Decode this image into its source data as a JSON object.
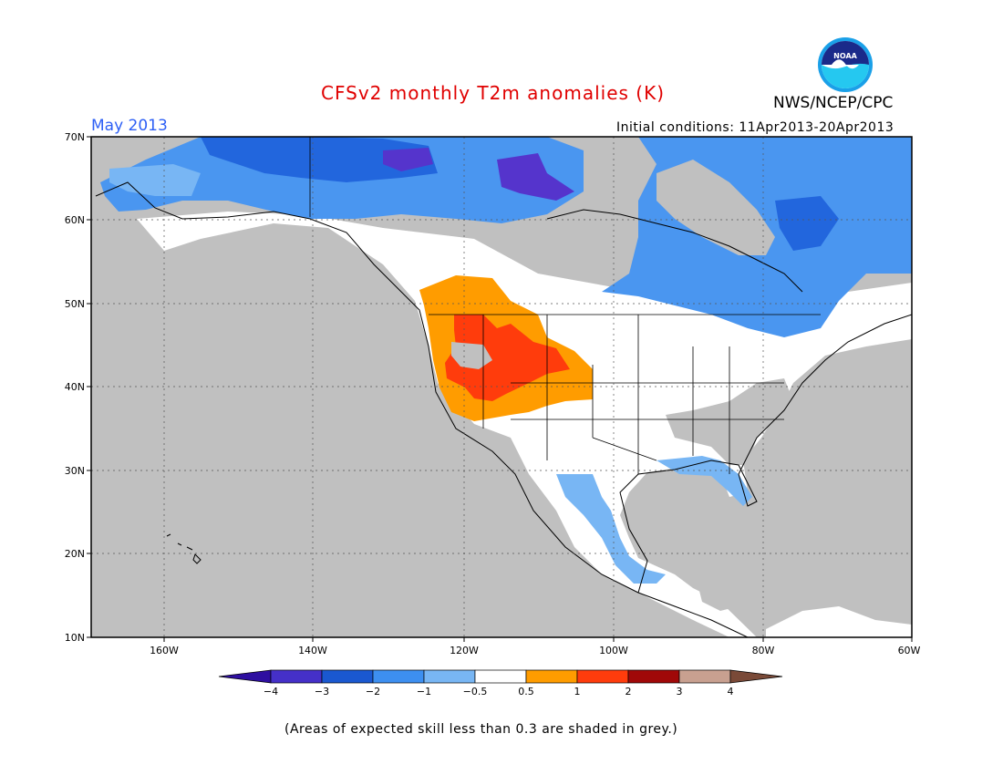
{
  "header": {
    "title": "CFSv2 monthly T2m anomalies (K)",
    "month": "May 2013",
    "initial_conditions": "Initial conditions: 11Apr2013-20Apr2013",
    "agency": "NWS/NCEP/CPC",
    "logo_text": "NOAA",
    "logo_icon": "noaa-logo-icon"
  },
  "map": {
    "lat_labels": [
      "70N",
      "60N",
      "50N",
      "40N",
      "30N",
      "20N",
      "10N"
    ],
    "lon_labels": [
      "160W",
      "140W",
      "120W",
      "100W",
      "80W",
      "60W"
    ],
    "lon_range": [
      -172,
      -60
    ],
    "lat_range": [
      10,
      70
    ],
    "colors": {
      "land_grey": "#c0c0c0",
      "ocean": "#c0c0c0",
      "neutral": "#ffffff",
      "coast": "#000000"
    },
    "anomaly_regions": [
      {
        "name": "alaska-cold",
        "color": "#4a96f0"
      },
      {
        "name": "arctic-canada-cold",
        "color": "#2266dd"
      },
      {
        "name": "strong-cold",
        "color": "#5534cc"
      },
      {
        "name": "northwest-warm",
        "color": "#ff9c00"
      },
      {
        "name": "northwest-hot",
        "color": "#ff3c0c"
      },
      {
        "name": "eastern-canada-cold",
        "color": "#4a96f0"
      },
      {
        "name": "mexico-cool",
        "color": "#7bb8f3"
      }
    ]
  },
  "colorbar": {
    "labels": [
      "−4",
      "−3",
      "−2",
      "−1",
      "−0.5",
      "0.5",
      "1",
      "2",
      "3",
      "4"
    ],
    "colors": [
      "#2e0fa0",
      "#4530c8",
      "#1a58d0",
      "#3d8ff0",
      "#78b6f4",
      "#ffffff",
      "#ff9c00",
      "#ff3c0c",
      "#a00808",
      "#c8a090",
      "#7a4a38"
    ]
  },
  "footer": {
    "skill_note": "(Areas of expected skill less than 0.3 are shaded in grey.)"
  }
}
